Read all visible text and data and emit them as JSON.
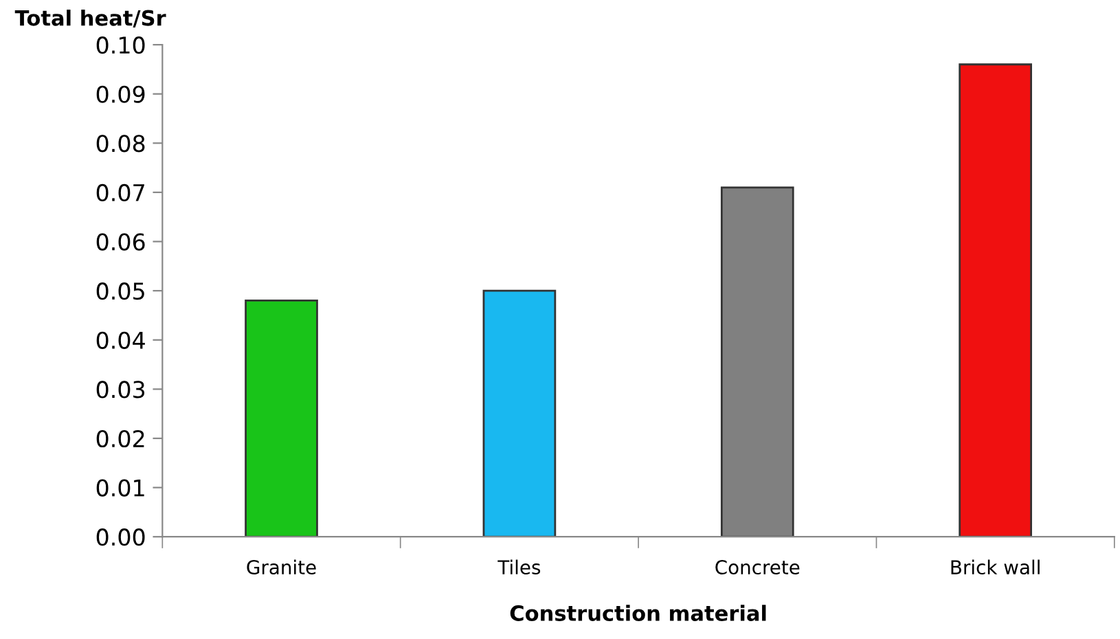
{
  "chart_data": {
    "type": "bar",
    "ylabel": "Total heat/Sr",
    "xlabel": "Construction material",
    "categories": [
      "Granite",
      "Tiles",
      "Concrete",
      "Brick wall"
    ],
    "values": [
      0.048,
      0.05,
      0.071,
      0.096
    ],
    "colors": [
      "#19c419",
      "#19b8f0",
      "#808080",
      "#f01010"
    ],
    "ylim": [
      0,
      0.1
    ],
    "yticks": [
      {
        "value": 0,
        "label": "0.00"
      },
      {
        "value": 0.01,
        "label": "0.01"
      },
      {
        "value": 0.02,
        "label": "0.02"
      },
      {
        "value": 0.03,
        "label": "0.03"
      },
      {
        "value": 0.04,
        "label": "0.04"
      },
      {
        "value": 0.05,
        "label": "0.05"
      },
      {
        "value": 0.06,
        "label": "0.06"
      },
      {
        "value": 0.07,
        "label": "0.07"
      },
      {
        "value": 0.08,
        "label": "0.08"
      },
      {
        "value": 0.09,
        "label": "0.09"
      },
      {
        "value": 0.1,
        "label": "0.10"
      }
    ]
  }
}
